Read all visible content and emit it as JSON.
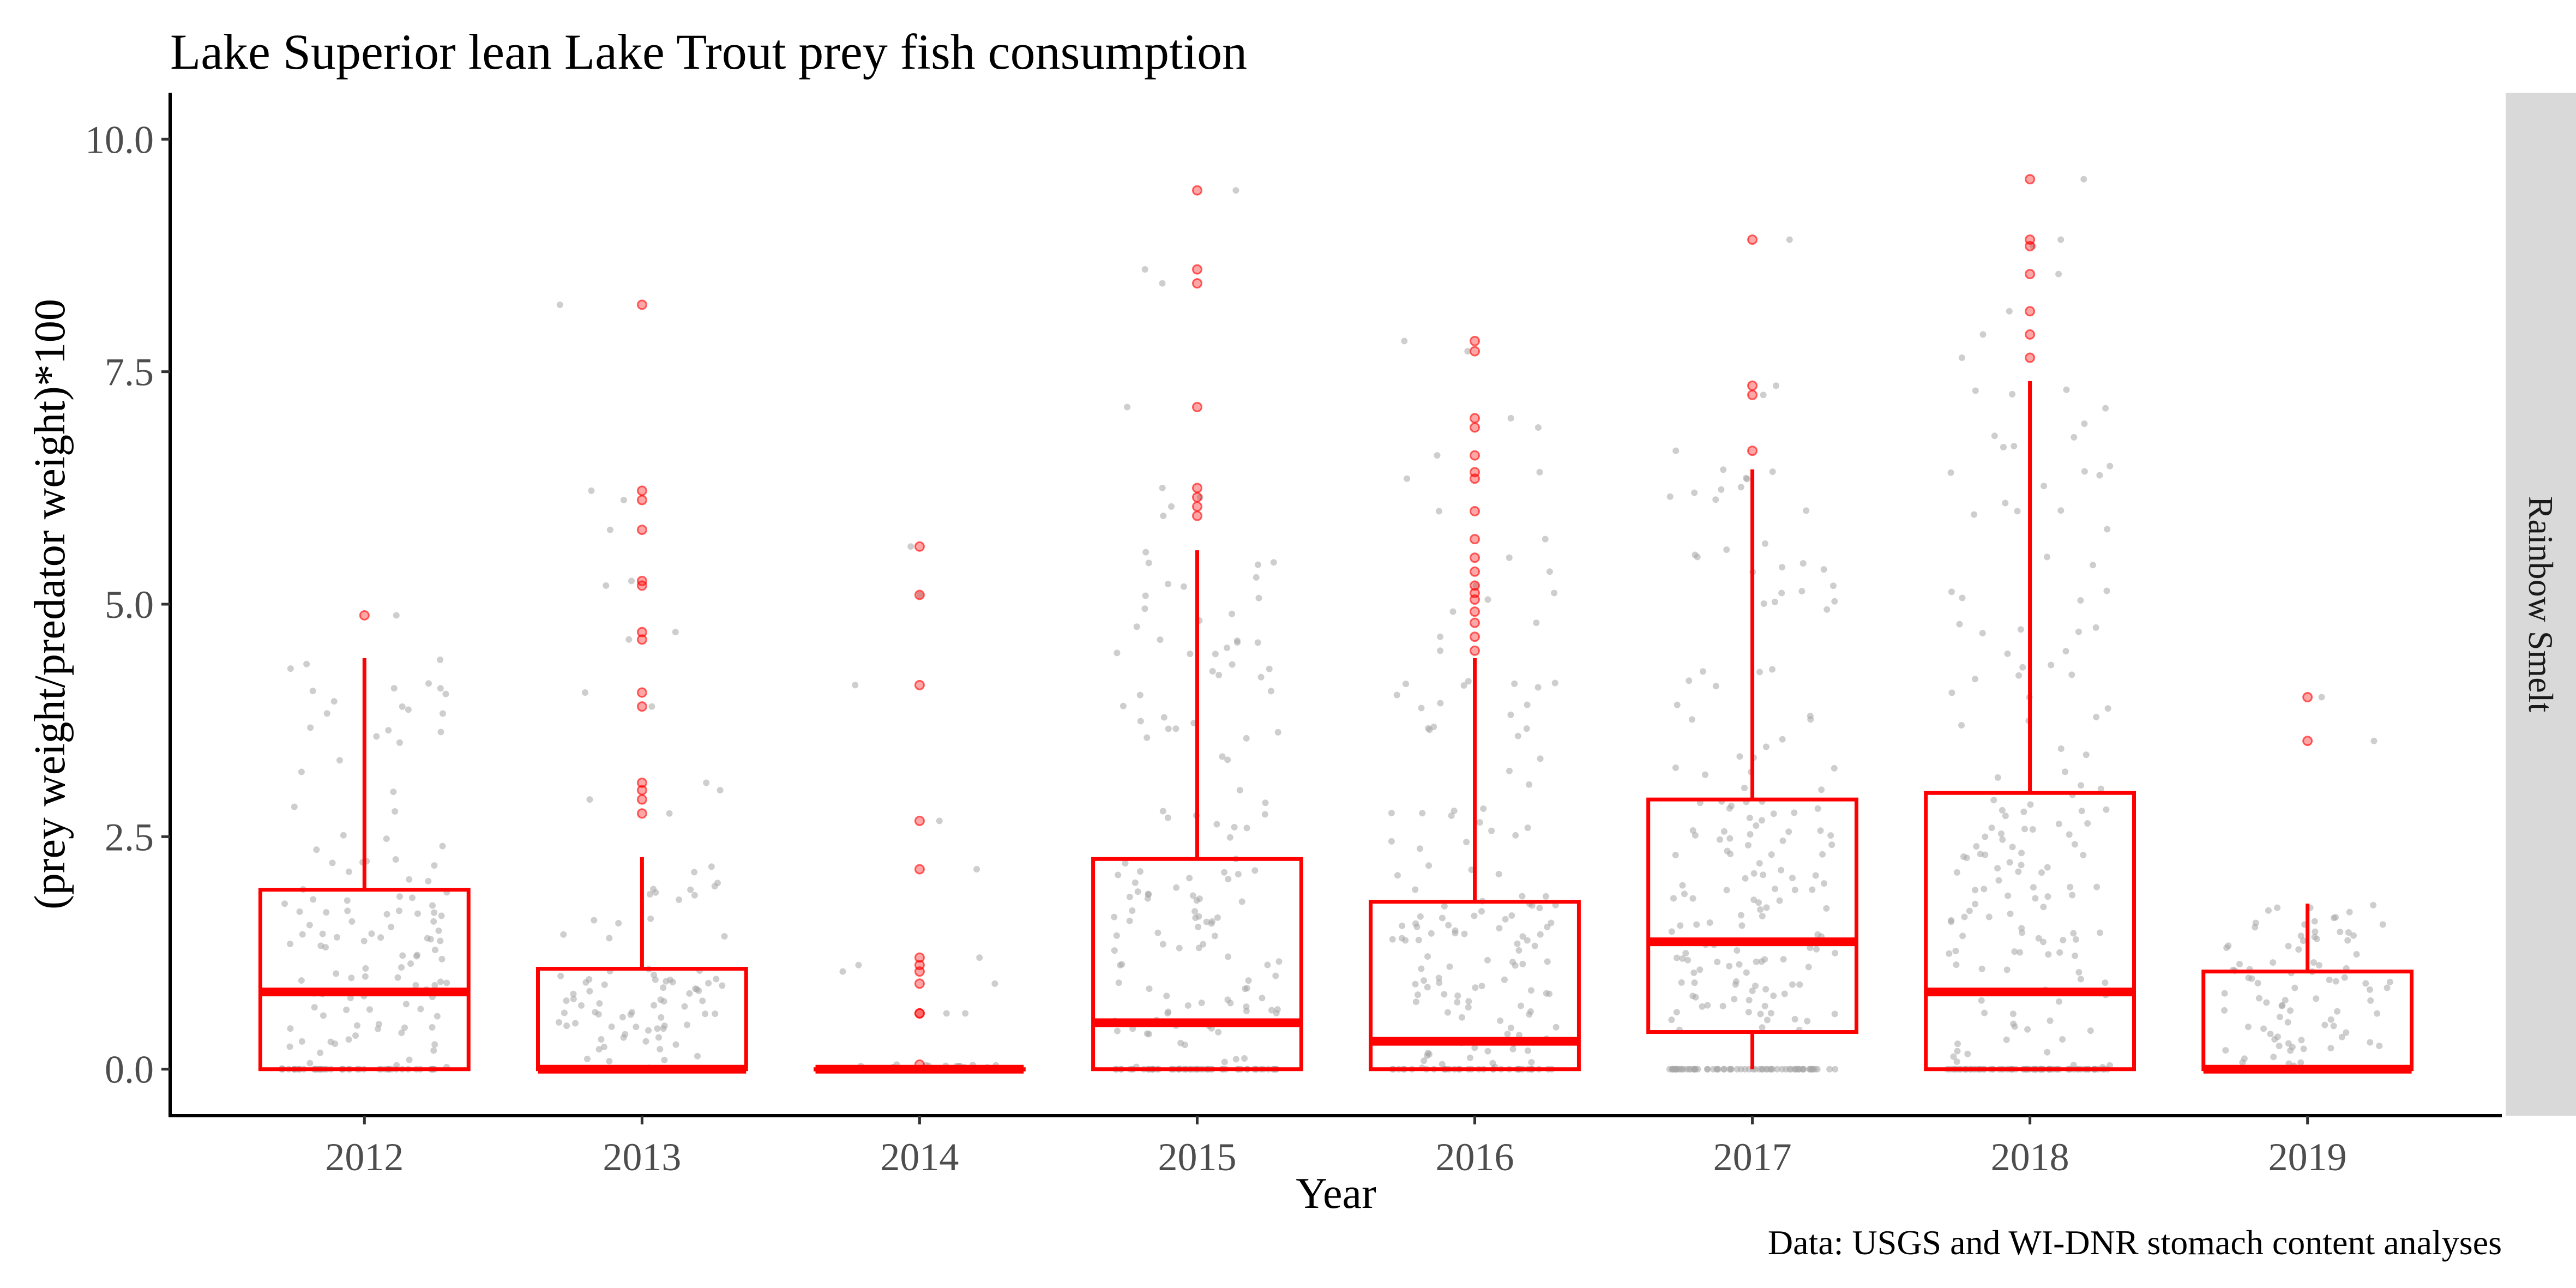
{
  "chart_data": {
    "type": "box",
    "title": "Lake Superior lean Lake Trout prey fish consumption",
    "xlabel": "Year",
    "ylabel": "(prey weight/predator weight)*100",
    "caption": "Data: USGS and WI-DNR stomach content analyses",
    "facet_label": "Rainbow Smelt",
    "categories": [
      "2012",
      "2013",
      "2014",
      "2015",
      "2016",
      "2017",
      "2018",
      "2019"
    ],
    "ylim": [
      -0.5,
      10.5
    ],
    "yticks": [
      0.0,
      2.5,
      5.0,
      7.5,
      10.0
    ],
    "ytick_labels": [
      "0.0",
      "2.5",
      "5.0",
      "7.5",
      "10.0"
    ],
    "grid": false,
    "colors": {
      "box": "#ff0000",
      "outlier": "#ff0000",
      "jitter": "#a6a6a6",
      "strip": "#d9d9d9"
    },
    "boxes": [
      {
        "year": "2012",
        "q1": 0.0,
        "median": 0.83,
        "q3": 1.93,
        "whisker_low": 0.0,
        "whisker_high": 4.42,
        "outliers": [
          4.88
        ]
      },
      {
        "year": "2013",
        "q1": 0.0,
        "median": 0.0,
        "q3": 1.08,
        "whisker_low": 0.0,
        "whisker_high": 2.28,
        "outliers": [
          2.75,
          2.9,
          3.0,
          3.08,
          3.9,
          4.05,
          4.62,
          4.7,
          5.2,
          5.25,
          5.8,
          6.12,
          6.22,
          8.22
        ]
      },
      {
        "year": "2014",
        "q1": 0.0,
        "median": 0.0,
        "q3": 0.0,
        "whisker_low": 0.0,
        "whisker_high": 0.0,
        "outliers": [
          0.05,
          0.6,
          0.6,
          0.92,
          1.05,
          1.12,
          1.2,
          2.15,
          2.67,
          4.13,
          5.1,
          5.62
        ]
      },
      {
        "year": "2015",
        "q1": 0.0,
        "median": 0.5,
        "q3": 2.26,
        "whisker_low": 0.0,
        "whisker_high": 5.58,
        "outliers": [
          5.95,
          6.05,
          6.15,
          6.25,
          7.12,
          8.45,
          8.6,
          9.45
        ]
      },
      {
        "year": "2016",
        "q1": 0.0,
        "median": 0.3,
        "q3": 1.8,
        "whisker_low": 0.0,
        "whisker_high": 4.42,
        "outliers": [
          4.5,
          4.65,
          4.8,
          4.92,
          5.05,
          5.12,
          5.2,
          5.35,
          5.5,
          5.7,
          6.0,
          6.35,
          6.42,
          6.6,
          6.9,
          7.0,
          7.72,
          7.83
        ]
      },
      {
        "year": "2017",
        "q1": 0.4,
        "median": 1.37,
        "q3": 2.9,
        "whisker_low": 0.0,
        "whisker_high": 6.45,
        "outliers": [
          6.65,
          7.25,
          7.35,
          8.92
        ]
      },
      {
        "year": "2018",
        "q1": 0.0,
        "median": 0.83,
        "q3": 2.97,
        "whisker_low": 0.0,
        "whisker_high": 7.4,
        "outliers": [
          7.65,
          7.9,
          8.15,
          8.55,
          8.85,
          8.92,
          9.57
        ]
      },
      {
        "year": "2019",
        "q1": 0.0,
        "median": 0.0,
        "q3": 1.05,
        "whisker_low": 0.0,
        "whisker_high": 1.78,
        "outliers": [
          3.53,
          4.0
        ]
      }
    ]
  }
}
